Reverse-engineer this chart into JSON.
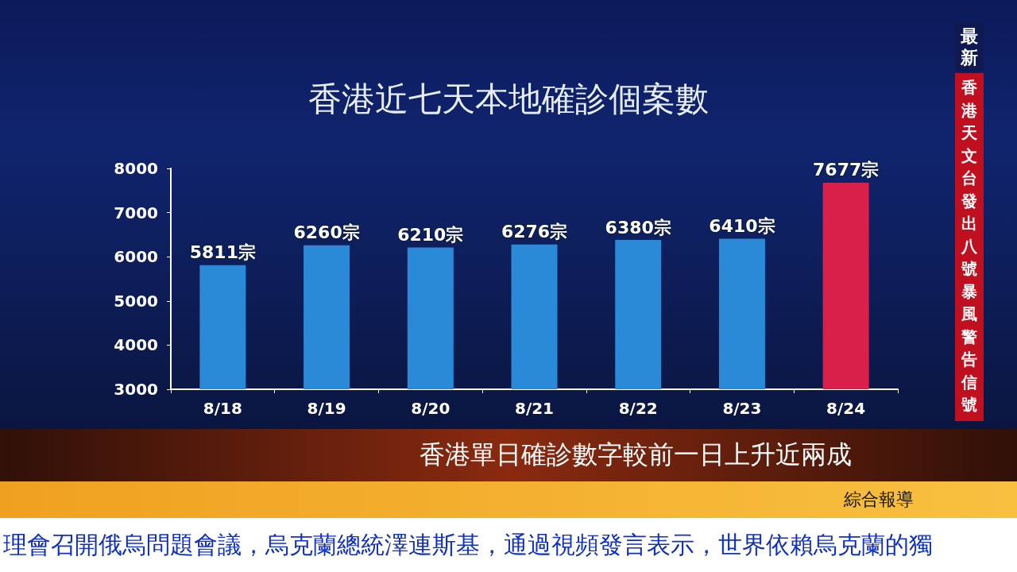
{
  "chart_data": {
    "type": "bar",
    "title": "香港近七天本地確診個案數",
    "categories": [
      "8/18",
      "8/19",
      "8/20",
      "8/21",
      "8/22",
      "8/23",
      "8/24"
    ],
    "values": [
      5811,
      6260,
      6210,
      6276,
      6380,
      6410,
      7677
    ],
    "value_labels": [
      "5811宗",
      "6260宗",
      "6210宗",
      "6276宗",
      "6380宗",
      "6410宗",
      "7677宗"
    ],
    "colors": [
      "#2a8ad8",
      "#2a8ad8",
      "#2a8ad8",
      "#2a8ad8",
      "#2a8ad8",
      "#2a8ad8",
      "#d8204a"
    ],
    "ylim": [
      3000,
      8000
    ],
    "yticks": [
      3000,
      4000,
      5000,
      6000,
      7000,
      8000
    ],
    "grid": false,
    "annotations": [
      "最新",
      "香港天文台發出八號暴風警告信號",
      "香港單日確診數字較前一日上升近兩成",
      "綜合報導",
      "理會召開俄烏問題會議，烏克蘭總統澤連斯基，通過視頻發言表示，世界依賴烏克蘭的獨"
    ]
  }
}
